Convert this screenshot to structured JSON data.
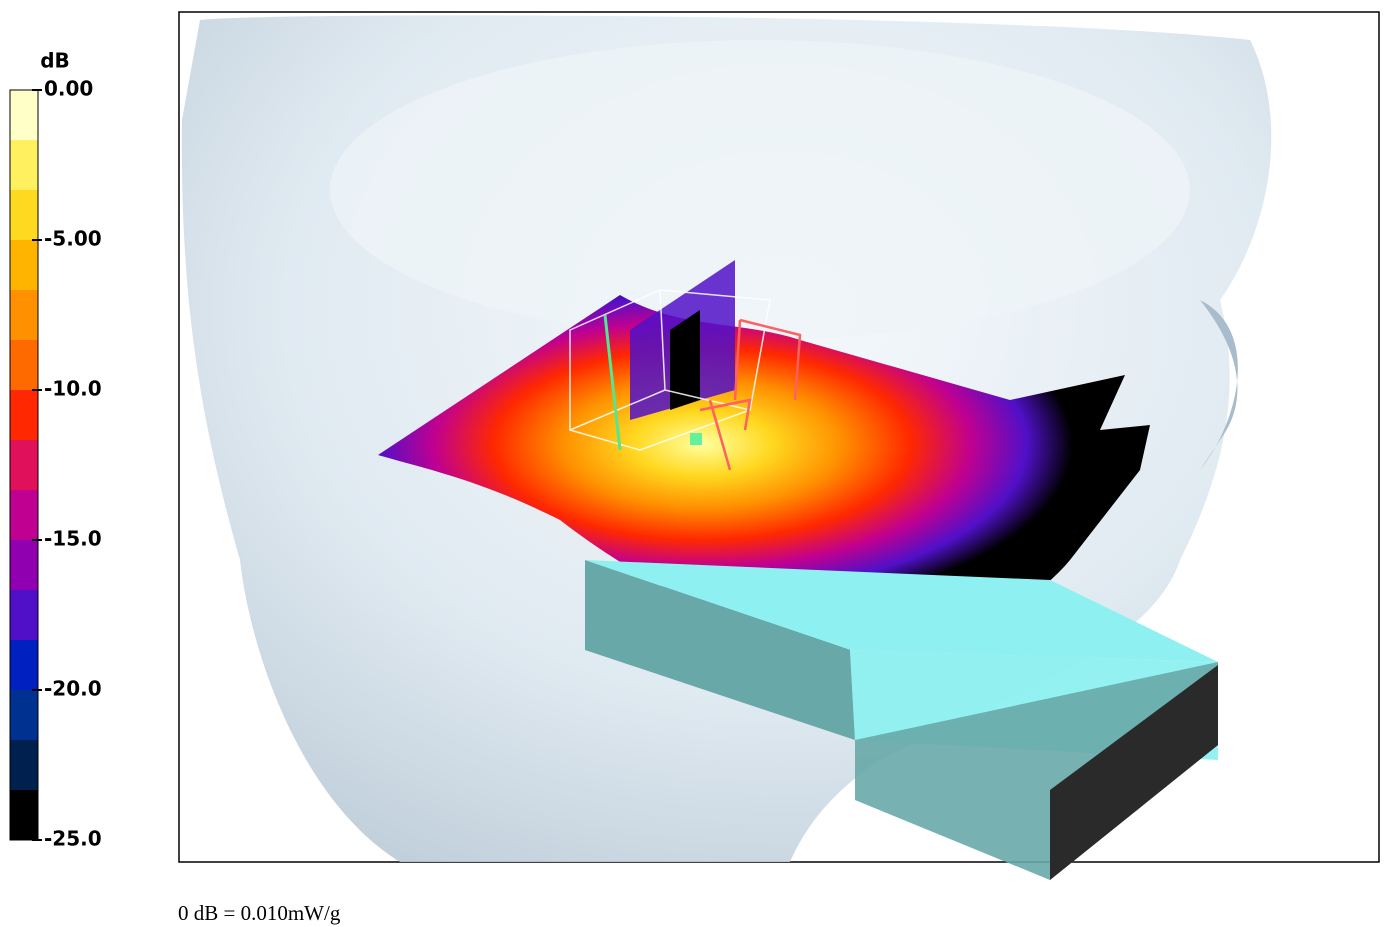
{
  "chart_data": {
    "type": "colorbar",
    "colorbar_title": "dB",
    "ylim": [
      -25,
      0
    ],
    "yticks": [
      {
        "value": 0,
        "label": "0.00"
      },
      {
        "value": -5,
        "label": "-5.00"
      },
      {
        "value": -10,
        "label": "-10.0"
      },
      {
        "value": -15,
        "label": "-15.0"
      },
      {
        "value": -20,
        "label": "-20.0"
      },
      {
        "value": -25,
        "label": "-25.0"
      }
    ],
    "colors": [
      "#ffffc8",
      "#fff060",
      "#ffd820",
      "#ffb400",
      "#ff9000",
      "#ff6a00",
      "#ff2800",
      "#e0105a",
      "#c00090",
      "#9000b0",
      "#5010c8",
      "#0020c0",
      "#003090",
      "#002050",
      "#000000"
    ],
    "note": "0 dB = 0.010mW/g"
  }
}
